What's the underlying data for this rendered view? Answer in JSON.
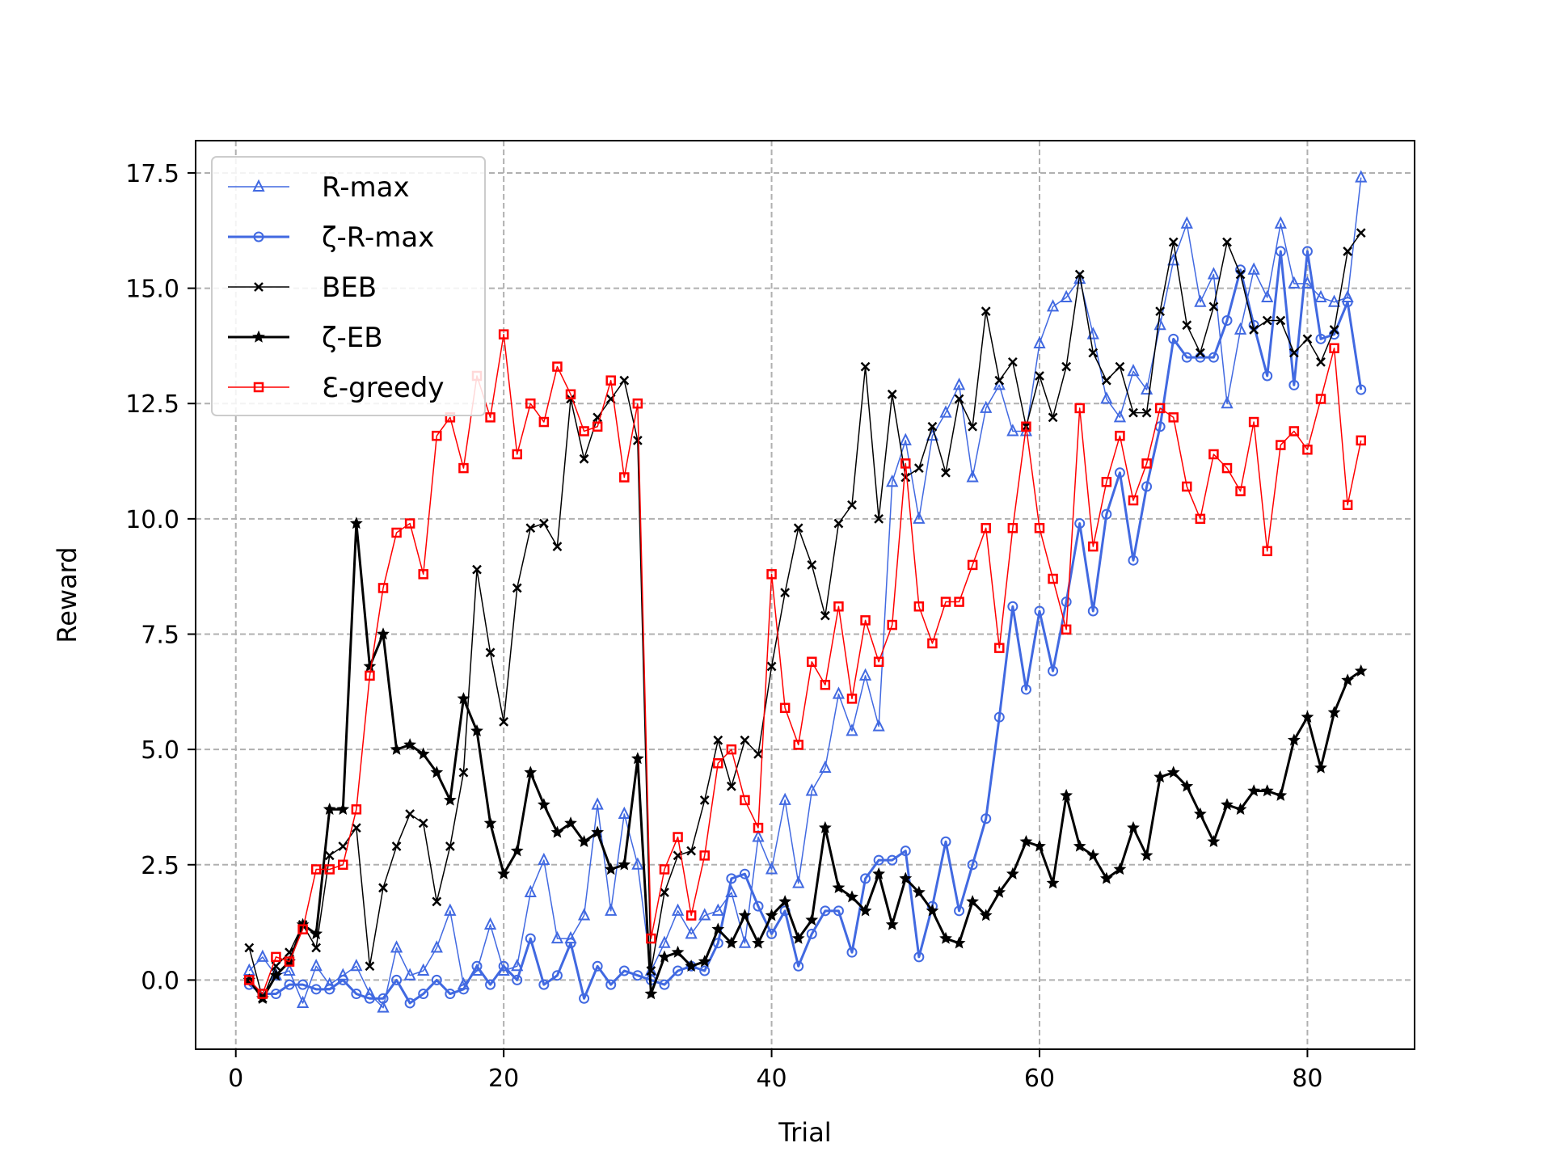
{
  "chart_data": {
    "type": "line",
    "xlabel": "Trial",
    "ylabel": "Reward",
    "xlim": [
      -3,
      88
    ],
    "ylim": [
      -1.5,
      18.2
    ],
    "xticks": [
      0,
      20,
      40,
      60,
      80
    ],
    "yticks": [
      0.0,
      2.5,
      5.0,
      7.5,
      10.0,
      12.5,
      15.0,
      17.5
    ],
    "xtick_labels": [
      "0",
      "20",
      "40",
      "60",
      "80"
    ],
    "ytick_labels": [
      "0.0",
      "2.5",
      "5.0",
      "7.5",
      "10.0",
      "12.5",
      "15.0",
      "17.5"
    ],
    "grid": true,
    "legend_position": "top-left",
    "x": [
      1,
      2,
      3,
      4,
      5,
      6,
      7,
      8,
      9,
      10,
      11,
      12,
      13,
      14,
      15,
      16,
      17,
      18,
      19,
      20,
      21,
      22,
      23,
      24,
      25,
      26,
      27,
      28,
      29,
      30,
      31,
      32,
      33,
      34,
      35,
      36,
      37,
      38,
      39,
      40,
      41,
      42,
      43,
      44,
      45,
      46,
      47,
      48,
      49,
      50,
      51,
      52,
      53,
      54,
      55,
      56,
      57,
      58,
      59,
      60,
      61,
      62,
      63,
      64,
      65,
      66,
      67,
      68,
      69,
      70,
      71,
      72,
      73,
      74,
      75,
      76,
      77,
      78,
      79,
      80,
      81,
      82,
      83,
      84
    ],
    "series": [
      {
        "name": "R-max",
        "color": "#4169e1",
        "marker": "triangle",
        "linewidth": 1.5,
        "values": [
          0.2,
          0.5,
          0.1,
          0.2,
          -0.5,
          0.3,
          -0.1,
          0.1,
          0.3,
          -0.3,
          -0.6,
          0.7,
          0.1,
          0.2,
          0.7,
          1.5,
          -0.1,
          0.2,
          1.2,
          0.2,
          0.3,
          1.9,
          2.6,
          0.9,
          0.9,
          1.4,
          3.8,
          1.5,
          3.6,
          2.5,
          0.2,
          0.8,
          1.5,
          1.0,
          1.4,
          1.5,
          1.9,
          0.8,
          3.1,
          2.4,
          3.9,
          2.1,
          4.1,
          4.6,
          6.2,
          5.4,
          6.6,
          5.5,
          10.8,
          11.7,
          10.0,
          11.8,
          12.3,
          12.9,
          10.9,
          12.4,
          12.9,
          11.9,
          11.9,
          13.8,
          14.6,
          14.8,
          15.2,
          14.0,
          12.6,
          12.2,
          13.2,
          12.8,
          14.2,
          15.6,
          16.4,
          14.7,
          15.3,
          12.5,
          14.1,
          15.4,
          14.8,
          16.4,
          15.1,
          15.1,
          14.8,
          14.7,
          14.8,
          17.4
        ]
      },
      {
        "name": "ζ-R-max",
        "color": "#4169e1",
        "marker": "circle",
        "linewidth": 3,
        "values": [
          -0.1,
          -0.3,
          -0.3,
          -0.1,
          -0.1,
          -0.2,
          -0.2,
          0.0,
          -0.3,
          -0.4,
          -0.4,
          0.0,
          -0.5,
          -0.3,
          0.0,
          -0.3,
          -0.2,
          0.3,
          -0.1,
          0.3,
          0.0,
          0.9,
          -0.1,
          0.1,
          0.8,
          -0.4,
          0.3,
          -0.1,
          0.2,
          0.1,
          0.0,
          -0.1,
          0.2,
          0.3,
          0.2,
          0.8,
          2.2,
          2.3,
          1.6,
          1.0,
          1.5,
          0.3,
          1.0,
          1.5,
          1.5,
          0.6,
          2.2,
          2.6,
          2.6,
          2.8,
          0.5,
          1.6,
          3.0,
          1.5,
          2.5,
          3.5,
          5.7,
          8.1,
          6.3,
          8.0,
          6.7,
          8.2,
          9.9,
          8.0,
          10.1,
          11.0,
          9.1,
          10.7,
          12.0,
          13.9,
          13.5,
          13.5,
          13.5,
          14.3,
          15.4,
          14.2,
          13.1,
          15.8,
          12.9,
          15.8,
          13.9,
          14.0,
          14.7,
          12.8
        ]
      },
      {
        "name": "BEB",
        "color": "#000000",
        "marker": "x",
        "linewidth": 1.5,
        "values": [
          0.7,
          -0.4,
          0.3,
          0.6,
          1.2,
          0.7,
          2.7,
          2.9,
          3.3,
          0.3,
          2.0,
          2.9,
          3.6,
          3.4,
          1.7,
          2.9,
          4.5,
          8.9,
          7.1,
          5.6,
          8.5,
          9.8,
          9.9,
          9.4,
          12.6,
          11.3,
          12.2,
          12.6,
          13.0,
          11.7,
          0.2,
          1.9,
          2.7,
          2.8,
          3.9,
          5.2,
          4.2,
          5.2,
          4.9,
          6.8,
          8.4,
          9.8,
          9.0,
          7.9,
          9.9,
          10.3,
          13.3,
          10.0,
          12.7,
          10.9,
          11.1,
          12.0,
          11.0,
          12.6,
          12.0,
          14.5,
          13.0,
          13.4,
          12.0,
          13.1,
          12.2,
          13.3,
          15.3,
          13.6,
          13.0,
          13.3,
          12.3,
          12.3,
          14.5,
          16.0,
          14.2,
          13.6,
          14.6,
          16.0,
          15.3,
          14.1,
          14.3,
          14.3,
          13.6,
          13.9,
          13.4,
          14.1,
          15.8,
          16.2
        ]
      },
      {
        "name": "ζ-EB",
        "color": "#000000",
        "marker": "star",
        "linewidth": 3,
        "values": [
          0.0,
          -0.4,
          0.1,
          0.4,
          1.2,
          1.0,
          3.7,
          3.7,
          9.9,
          6.8,
          7.5,
          5.0,
          5.1,
          4.9,
          4.5,
          3.9,
          6.1,
          5.4,
          3.4,
          2.3,
          2.8,
          4.5,
          3.8,
          3.2,
          3.4,
          3.0,
          3.2,
          2.4,
          2.5,
          4.8,
          -0.3,
          0.5,
          0.6,
          0.3,
          0.4,
          1.1,
          0.8,
          1.4,
          0.8,
          1.4,
          1.7,
          0.9,
          1.3,
          3.3,
          2.0,
          1.8,
          1.5,
          2.3,
          1.2,
          2.2,
          1.9,
          1.5,
          0.9,
          0.8,
          1.7,
          1.4,
          1.9,
          2.3,
          3.0,
          2.9,
          2.1,
          4.0,
          2.9,
          2.7,
          2.2,
          2.4,
          3.3,
          2.7,
          4.4,
          4.5,
          4.2,
          3.6,
          3.0,
          3.8,
          3.7,
          4.1,
          4.1,
          4.0,
          5.2,
          5.7,
          4.6,
          5.8,
          6.5,
          6.7
        ]
      },
      {
        "name": "Ɛ-greedy",
        "color": "#ff0000",
        "marker": "square",
        "linewidth": 1.5,
        "values": [
          0.0,
          -0.3,
          0.5,
          0.4,
          1.1,
          2.4,
          2.4,
          2.5,
          3.7,
          6.6,
          8.5,
          9.7,
          9.9,
          8.8,
          11.8,
          12.2,
          11.1,
          13.1,
          12.2,
          14.0,
          11.4,
          12.5,
          12.1,
          13.3,
          12.7,
          11.9,
          12.0,
          13.0,
          10.9,
          12.5,
          0.9,
          2.4,
          3.1,
          1.4,
          2.7,
          4.7,
          5.0,
          3.9,
          3.3,
          8.8,
          5.9,
          5.1,
          6.9,
          6.4,
          8.1,
          6.1,
          7.8,
          6.9,
          7.7,
          11.2,
          8.1,
          7.3,
          8.2,
          8.2,
          9.0,
          9.8,
          7.2,
          9.8,
          12.0,
          9.8,
          8.7,
          7.6,
          12.4,
          9.4,
          10.8,
          11.8,
          10.4,
          11.2,
          12.4,
          12.2,
          10.7,
          10.0,
          11.4,
          11.1,
          10.6,
          12.1,
          9.3,
          11.6,
          11.9,
          11.5,
          12.6,
          13.7,
          10.3,
          11.7
        ]
      }
    ]
  }
}
